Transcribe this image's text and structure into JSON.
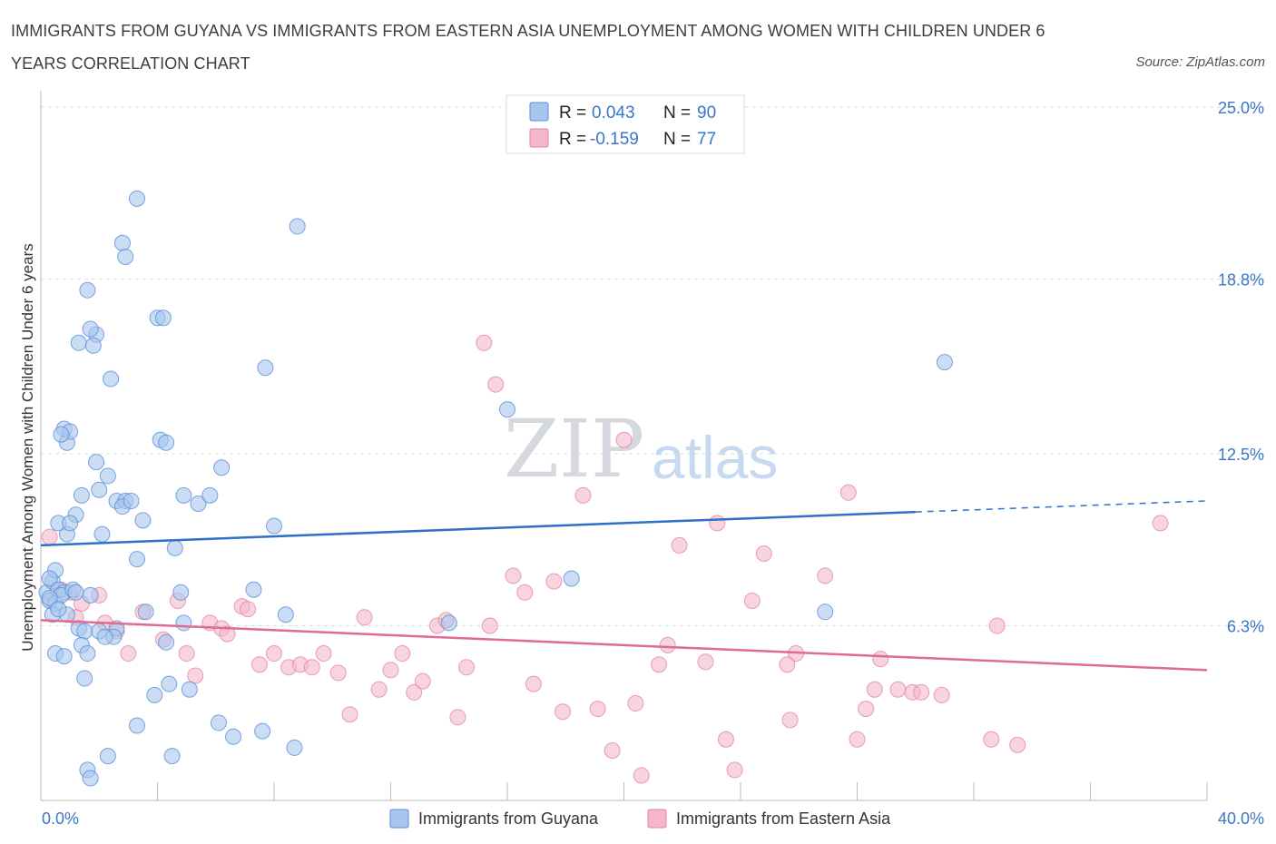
{
  "title": "IMMIGRANTS FROM GUYANA VS IMMIGRANTS FROM EASTERN ASIA UNEMPLOYMENT AMONG WOMEN WITH CHILDREN UNDER 6 YEARS CORRELATION CHART",
  "source": "Source: ZipAtlas.com",
  "watermark": {
    "zip": "ZIP",
    "atlas": "atlas"
  },
  "legend": {
    "r_label": "R =",
    "n_label": "N =",
    "rows": [
      {
        "r": "0.043",
        "n": "90",
        "color": "#a7c6ee"
      },
      {
        "r": "-0.159",
        "n": "77",
        "color": "#f4b7ca"
      }
    ]
  },
  "colors": {
    "blue_fill": "#a7c6ee",
    "blue_stroke": "#5b8fd6",
    "blue_line": "#2f6fcc",
    "pink_fill": "#f4b7ca",
    "pink_stroke": "#e586a4",
    "pink_line": "#e06a93"
  },
  "chart_data": {
    "type": "scatter",
    "xlabel": "",
    "ylabel": "Unemployment Among Women with Children Under 6 years",
    "xlim": [
      0,
      40
    ],
    "ylim": [
      0,
      25
    ],
    "x_tick_labels": [
      "0.0%",
      "40.0%"
    ],
    "y_ticks": [
      6.3,
      12.5,
      18.8,
      25.0
    ],
    "y_tick_labels": [
      "6.3%",
      "12.5%",
      "18.8%",
      "25.0%"
    ],
    "grid": "horizontal dashed",
    "legend_position": "top-center",
    "series": [
      {
        "name": "Immigrants from Guyana",
        "r": 0.043,
        "n": 90,
        "trend": {
          "x0": 0,
          "y0": 9.2,
          "x1": 30,
          "y1": 10.4,
          "dashed_to_x": 40,
          "dashed_to_y": 10.8
        },
        "points": [
          [
            0.2,
            7.5
          ],
          [
            0.3,
            7.2
          ],
          [
            0.4,
            7.9
          ],
          [
            0.5,
            8.3
          ],
          [
            0.3,
            8.0
          ],
          [
            0.6,
            7.6
          ],
          [
            0.8,
            7.5
          ],
          [
            0.5,
            7.1
          ],
          [
            0.4,
            6.7
          ],
          [
            0.7,
            7.4
          ],
          [
            0.9,
            9.6
          ],
          [
            0.6,
            10.0
          ],
          [
            0.8,
            13.4
          ],
          [
            0.9,
            12.9
          ],
          [
            1.0,
            13.3
          ],
          [
            0.7,
            13.2
          ],
          [
            1.2,
            10.3
          ],
          [
            1.0,
            10.0
          ],
          [
            1.4,
            11.0
          ],
          [
            1.1,
            7.6
          ],
          [
            0.9,
            6.7
          ],
          [
            1.3,
            6.2
          ],
          [
            1.5,
            6.1
          ],
          [
            1.4,
            5.6
          ],
          [
            1.6,
            5.3
          ],
          [
            0.5,
            5.3
          ],
          [
            0.8,
            5.2
          ],
          [
            1.5,
            4.4
          ],
          [
            1.3,
            16.5
          ],
          [
            1.9,
            16.8
          ],
          [
            1.7,
            17.0
          ],
          [
            1.6,
            18.4
          ],
          [
            1.8,
            16.4
          ],
          [
            2.4,
            15.2
          ],
          [
            1.9,
            12.2
          ],
          [
            2.3,
            11.7
          ],
          [
            2.0,
            11.2
          ],
          [
            2.6,
            10.8
          ],
          [
            2.1,
            9.6
          ],
          [
            2.9,
            10.8
          ],
          [
            2.8,
            10.6
          ],
          [
            3.1,
            10.8
          ],
          [
            3.5,
            10.1
          ],
          [
            3.3,
            21.7
          ],
          [
            2.8,
            20.1
          ],
          [
            2.9,
            19.6
          ],
          [
            4.0,
            17.4
          ],
          [
            4.2,
            17.4
          ],
          [
            4.1,
            13.0
          ],
          [
            4.3,
            12.9
          ],
          [
            4.6,
            9.1
          ],
          [
            4.9,
            11.0
          ],
          [
            5.4,
            10.7
          ],
          [
            5.8,
            11.0
          ],
          [
            6.2,
            12.0
          ],
          [
            7.7,
            15.6
          ],
          [
            8.8,
            20.7
          ],
          [
            8.0,
            9.9
          ],
          [
            7.3,
            7.6
          ],
          [
            4.8,
            7.5
          ],
          [
            3.3,
            8.7
          ],
          [
            2.6,
            6.2
          ],
          [
            2.5,
            5.9
          ],
          [
            3.6,
            6.8
          ],
          [
            4.9,
            6.4
          ],
          [
            4.3,
            5.7
          ],
          [
            4.4,
            4.2
          ],
          [
            3.9,
            3.8
          ],
          [
            5.1,
            4.0
          ],
          [
            3.3,
            2.7
          ],
          [
            6.1,
            2.8
          ],
          [
            6.6,
            2.3
          ],
          [
            7.6,
            2.5
          ],
          [
            8.7,
            1.9
          ],
          [
            4.5,
            1.6
          ],
          [
            2.3,
            1.6
          ],
          [
            1.6,
            1.1
          ],
          [
            1.7,
            0.8
          ],
          [
            8.4,
            6.7
          ],
          [
            14.0,
            6.4
          ],
          [
            16.0,
            14.1
          ],
          [
            18.2,
            8.0
          ],
          [
            26.9,
            6.8
          ],
          [
            31.0,
            15.8
          ],
          [
            0.3,
            7.3
          ],
          [
            1.2,
            7.5
          ],
          [
            2.0,
            6.1
          ],
          [
            0.6,
            6.9
          ],
          [
            1.7,
            7.4
          ],
          [
            2.2,
            5.9
          ]
        ]
      },
      {
        "name": "Immigrants from Eastern Asia",
        "r": -0.159,
        "n": 77,
        "trend": {
          "x0": 0,
          "y0": 6.5,
          "x1": 40,
          "y1": 4.7
        },
        "points": [
          [
            0.3,
            9.5
          ],
          [
            0.7,
            7.6
          ],
          [
            1.0,
            7.5
          ],
          [
            1.4,
            7.1
          ],
          [
            2.0,
            7.4
          ],
          [
            1.2,
            6.6
          ],
          [
            2.2,
            6.4
          ],
          [
            2.6,
            6.1
          ],
          [
            3.0,
            5.3
          ],
          [
            3.5,
            6.8
          ],
          [
            4.2,
            5.8
          ],
          [
            4.7,
            7.2
          ],
          [
            5.0,
            5.3
          ],
          [
            5.3,
            4.5
          ],
          [
            5.8,
            6.4
          ],
          [
            6.2,
            6.2
          ],
          [
            6.4,
            6.0
          ],
          [
            6.9,
            7.0
          ],
          [
            7.1,
            6.9
          ],
          [
            7.5,
            4.9
          ],
          [
            8.0,
            5.3
          ],
          [
            8.5,
            4.8
          ],
          [
            8.9,
            4.9
          ],
          [
            9.3,
            4.8
          ],
          [
            9.7,
            5.3
          ],
          [
            10.2,
            4.6
          ],
          [
            10.6,
            3.1
          ],
          [
            11.1,
            6.6
          ],
          [
            11.6,
            4.0
          ],
          [
            12.0,
            4.7
          ],
          [
            12.4,
            5.3
          ],
          [
            12.8,
            3.9
          ],
          [
            13.1,
            4.3
          ],
          [
            13.6,
            6.3
          ],
          [
            13.9,
            6.5
          ],
          [
            14.3,
            3.0
          ],
          [
            14.6,
            4.8
          ],
          [
            15.2,
            16.5
          ],
          [
            15.6,
            15.0
          ],
          [
            15.4,
            6.3
          ],
          [
            16.2,
            8.1
          ],
          [
            16.6,
            7.5
          ],
          [
            16.9,
            4.2
          ],
          [
            17.6,
            7.9
          ],
          [
            17.9,
            3.2
          ],
          [
            18.6,
            11.0
          ],
          [
            19.1,
            3.3
          ],
          [
            19.6,
            1.8
          ],
          [
            20.0,
            13.0
          ],
          [
            20.4,
            3.5
          ],
          [
            20.6,
            0.9
          ],
          [
            21.2,
            4.9
          ],
          [
            21.5,
            5.6
          ],
          [
            21.9,
            9.2
          ],
          [
            22.8,
            5.0
          ],
          [
            23.2,
            10.0
          ],
          [
            23.5,
            2.2
          ],
          [
            23.8,
            1.1
          ],
          [
            24.4,
            7.2
          ],
          [
            24.8,
            8.9
          ],
          [
            25.7,
            2.9
          ],
          [
            25.9,
            5.3
          ],
          [
            25.6,
            4.9
          ],
          [
            26.9,
            8.1
          ],
          [
            27.7,
            11.1
          ],
          [
            28.0,
            2.2
          ],
          [
            28.3,
            3.3
          ],
          [
            28.8,
            5.1
          ],
          [
            28.6,
            4.0
          ],
          [
            29.4,
            4.0
          ],
          [
            29.9,
            3.9
          ],
          [
            30.2,
            3.9
          ],
          [
            30.9,
            3.8
          ],
          [
            32.8,
            6.3
          ],
          [
            32.6,
            2.2
          ],
          [
            33.5,
            2.0
          ],
          [
            38.4,
            10.0
          ]
        ]
      }
    ]
  },
  "bottom_legend": [
    "Immigrants from Guyana",
    "Immigrants from Eastern Asia"
  ]
}
